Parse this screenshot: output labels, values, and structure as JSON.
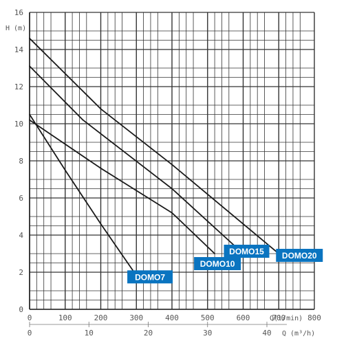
{
  "chart_data": {
    "type": "line",
    "y_axis": {
      "range": [
        0,
        16
      ],
      "ticks": [
        0,
        2,
        4,
        6,
        8,
        10,
        12,
        14,
        16
      ],
      "tick_labels": [
        "0",
        "2",
        "4",
        "6",
        "8",
        "10",
        "12",
        "14",
        "16"
      ],
      "unit_label": "H (m)"
    },
    "x_axis_lpm": {
      "range": [
        0,
        800
      ],
      "ticks": [
        0,
        100,
        200,
        300,
        400,
        500,
        600,
        700,
        800
      ],
      "tick_labels": [
        "0",
        "100",
        "200",
        "300",
        "400",
        "500",
        "600",
        "700",
        "800"
      ],
      "unit_label": "Q(l/min)"
    },
    "x_axis_m3h": {
      "ticks": [
        0,
        10,
        20,
        30,
        40
      ],
      "tick_labels": [
        "0",
        "10",
        "20",
        "30",
        "40"
      ],
      "unit_label": "Q (m³/h)"
    },
    "grid": true,
    "series": [
      {
        "name": "DOMO7",
        "x": [
          0,
          100,
          200,
          290
        ],
        "y": [
          10.5,
          7.5,
          4.6,
          2.1
        ]
      },
      {
        "name": "DOMO10",
        "x": [
          0,
          200,
          400,
          520
        ],
        "y": [
          10.2,
          7.6,
          5.2,
          3.0
        ]
      },
      {
        "name": "DOMO15",
        "x": [
          0,
          150,
          400,
          600
        ],
        "y": [
          13.1,
          10.2,
          6.5,
          3.0
        ]
      },
      {
        "name": "DOMO20",
        "x": [
          0,
          200,
          400,
          700
        ],
        "y": [
          14.6,
          10.8,
          7.8,
          3.0
        ]
      }
    ],
    "badge_color": "#0a74c0"
  }
}
